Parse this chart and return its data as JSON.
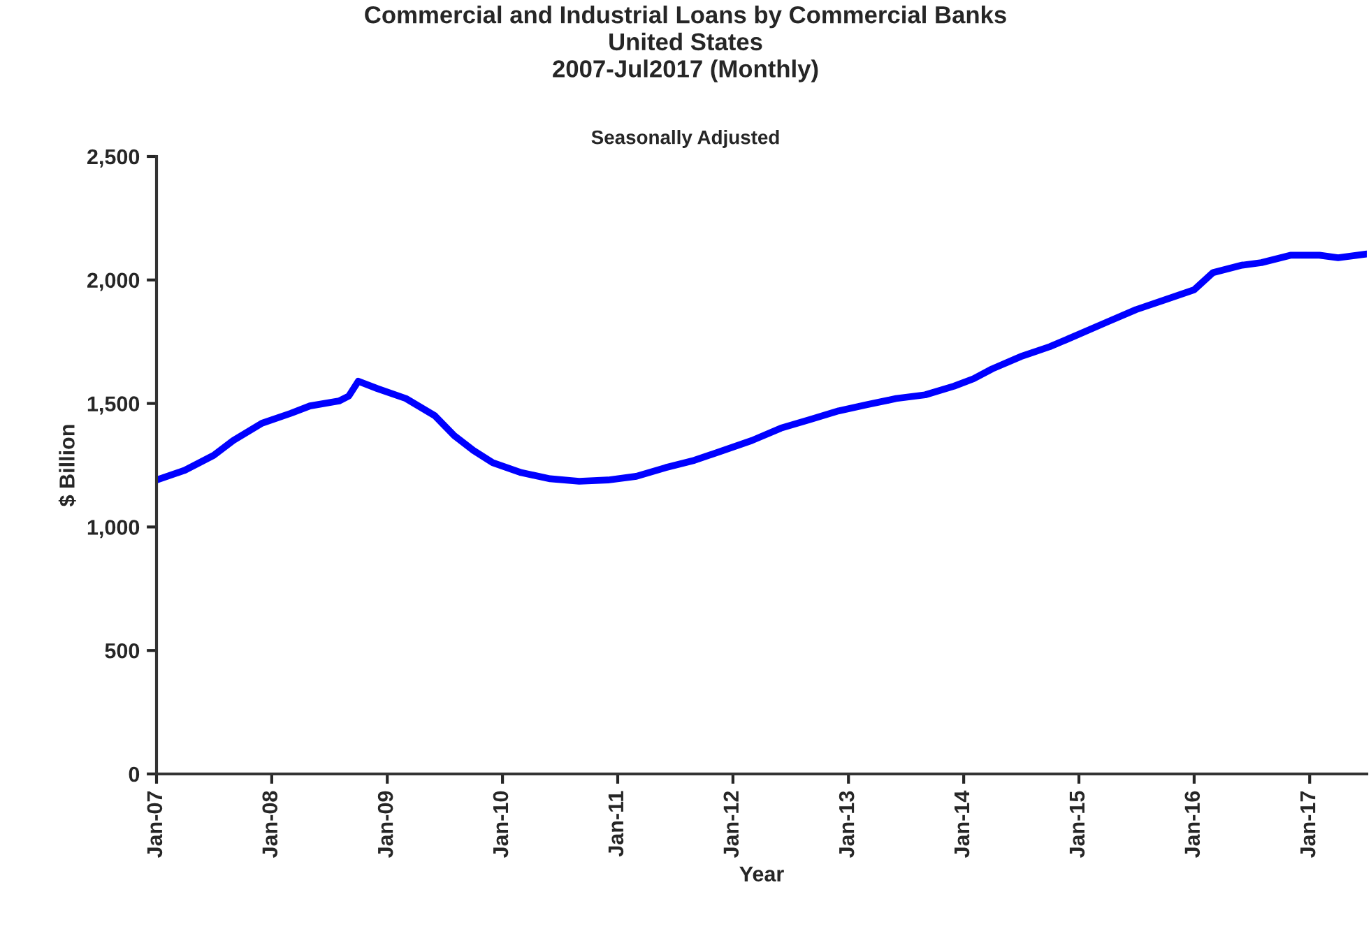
{
  "chart_data": {
    "type": "line",
    "title": "Commercial and Industrial Loans by Commercial Banks\nUnited States\n2007-Jul2017 (Monthly)",
    "subtitle": "Seasonally Adjusted",
    "xlabel": "Year",
    "ylabel": "$ Billion",
    "x": [
      "2007-01",
      "2007-04",
      "2007-07",
      "2007-09",
      "2007-12",
      "2008-03",
      "2008-05",
      "2008-08",
      "2008-09",
      "2008-10",
      "2008-12",
      "2009-03",
      "2009-06",
      "2009-08",
      "2009-10",
      "2009-12",
      "2010-03",
      "2010-06",
      "2010-09",
      "2010-12",
      "2011-03",
      "2011-06",
      "2011-09",
      "2011-12",
      "2012-03",
      "2012-06",
      "2012-09",
      "2012-12",
      "2013-03",
      "2013-06",
      "2013-09",
      "2013-12",
      "2014-02",
      "2014-04",
      "2014-07",
      "2014-10",
      "2015-01",
      "2015-04",
      "2015-07",
      "2015-10",
      "2016-01",
      "2016-03",
      "2016-06",
      "2016-08",
      "2016-11",
      "2017-02",
      "2017-04",
      "2017-07"
    ],
    "series": [
      {
        "color": "#0000ff",
        "values": [
          1190,
          1230,
          1290,
          1350,
          1420,
          1460,
          1490,
          1510,
          1530,
          1590,
          1560,
          1520,
          1450,
          1370,
          1310,
          1260,
          1220,
          1195,
          1185,
          1190,
          1205,
          1240,
          1270,
          1310,
          1350,
          1400,
          1435,
          1470,
          1495,
          1520,
          1535,
          1570,
          1600,
          1640,
          1690,
          1730,
          1780,
          1830,
          1880,
          1920,
          1960,
          2030,
          2060,
          2070,
          2100,
          2100,
          2090,
          2105
        ]
      }
    ],
    "xlim": [
      "2007-01",
      "2017-07"
    ],
    "xticks": [
      {
        "value": "2007-01",
        "label": "Jan-07"
      },
      {
        "value": "2008-01",
        "label": "Jan-08"
      },
      {
        "value": "2009-01",
        "label": "Jan-09"
      },
      {
        "value": "2010-01",
        "label": "Jan-10"
      },
      {
        "value": "2011-01",
        "label": "Jan-11"
      },
      {
        "value": "2012-01",
        "label": "Jan-12"
      },
      {
        "value": "2013-01",
        "label": "Jan-13"
      },
      {
        "value": "2014-01",
        "label": "Jan-14"
      },
      {
        "value": "2015-01",
        "label": "Jan-15"
      },
      {
        "value": "2016-01",
        "label": "Jan-16"
      },
      {
        "value": "2017-01",
        "label": "Jan-17"
      }
    ],
    "ylim": [
      0,
      2500
    ],
    "yticks": [
      0,
      500,
      {
        "value": 1000,
        "label": "1,000"
      },
      {
        "value": 1500,
        "label": "1,500"
      },
      {
        "value": 2000,
        "label": "2,000"
      },
      {
        "value": 2500,
        "label": "2,500"
      }
    ],
    "grid": false,
    "legend": false,
    "marker": "none",
    "line_style": "solid"
  }
}
